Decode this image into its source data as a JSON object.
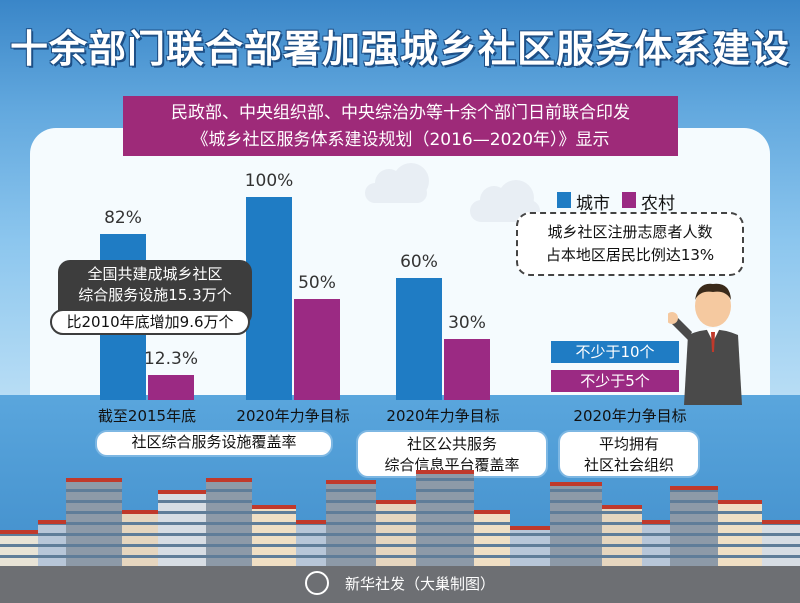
{
  "title": "十余部门联合部署加强城乡社区服务体系建设",
  "banner": {
    "line1": "民政部、中央组织部、中央综治办等十余个部门日前联合印发",
    "line2": "《城乡社区服务体系建设规划（2016—2020年）》显示"
  },
  "legend": {
    "urban": "城市",
    "rural": "农村"
  },
  "colors": {
    "urban": "#1f7cc4",
    "rural": "#9b2a83",
    "banner": "#9e2a79"
  },
  "chart_data": {
    "type": "bar",
    "categories": [
      "截至2015年底",
      "2020年力争目标",
      "2020年力争目标"
    ],
    "series": [
      {
        "name": "城市",
        "values": [
          82,
          100,
          60
        ],
        "labels": [
          "82%",
          "100%",
          "60%"
        ]
      },
      {
        "name": "农村",
        "values": [
          12.3,
          50,
          30
        ],
        "labels": [
          "12.3%",
          "50%",
          "30%"
        ]
      }
    ],
    "ylim": [
      0,
      100
    ]
  },
  "metrics": {
    "m1": "社区综合服务设施覆盖率",
    "m2_line1": "社区公共服务",
    "m2_line2": "综合信息平台覆盖率",
    "m3_line1": "平均拥有",
    "m3_line2": "社区社会组织",
    "m3_category": "2020年力争目标"
  },
  "notes": {
    "n1_line1": "全国共建成城乡社区",
    "n1_line2": "综合服务设施15.3万个",
    "n1_line3": "比2010年底增加9.6万个",
    "n2_line1": "城乡社区注册志愿者人数",
    "n2_line2": "占本地区居民比例达13%"
  },
  "counts": {
    "urban": "不少于10个",
    "rural": "不少于5个"
  },
  "footer": "新华社发（大巢制图）"
}
